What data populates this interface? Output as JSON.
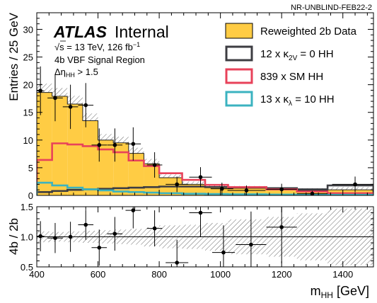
{
  "top_label": "NR-UNBLIND-FEB22-2",
  "atlas": {
    "brand": "ATLAS",
    "status": "Internal"
  },
  "info": {
    "energy": {
      "sqrt": "√s",
      "rest": " = 13 TeV, 126 fb",
      "sup": "−1"
    },
    "region": "4b VBF Signal Region",
    "cut": {
      "base": "Δη",
      "sub": "HH",
      "rest": " > 1.5"
    }
  },
  "chart_data": [
    {
      "type": "line",
      "panel": "main",
      "ylabel": "Entries / 25 GeV",
      "ylim": [
        0,
        33
      ],
      "xlim": [
        400,
        1500
      ],
      "yticks": [
        0,
        5,
        10,
        15,
        20,
        25,
        30
      ],
      "bin_edges": [
        400,
        450,
        500,
        550,
        600,
        650,
        700,
        750,
        800,
        875,
        950,
        1025,
        1150,
        1250,
        1350,
        1500
      ],
      "series": [
        {
          "name": "Reweighted 2b Data",
          "style": "filled-histogram",
          "color": "#ffcc44",
          "values": [
            18.6,
            17.9,
            16.5,
            13.5,
            10.0,
            9.5,
            7.6,
            5.7,
            3.2,
            2.0,
            1.4,
            1.3,
            1.0,
            0.9,
            1.0
          ],
          "uncertainty": [
            1.6,
            1.5,
            1.5,
            1.3,
            1.1,
            1.1,
            1.0,
            0.9,
            0.6,
            0.5,
            0.4,
            0.4,
            0.4,
            0.4,
            0.5
          ]
        },
        {
          "name": "12 x κ2V = 0 HH",
          "legend": {
            "prefix": "12 x κ",
            "sub": "2V",
            "suffix": " = 0 HH"
          },
          "style": "step",
          "color": "#3d3d42",
          "values": [
            0.6,
            0.8,
            1.0,
            1.1,
            1.2,
            1.3,
            1.4,
            1.5,
            1.6,
            1.6,
            1.5,
            1.5,
            1.3,
            1.1,
            1.8
          ]
        },
        {
          "name": "839 x SM HH",
          "legend": {
            "prefix": "839 x SM HH",
            "sub": "",
            "suffix": ""
          },
          "style": "step",
          "color": "#e8425a",
          "values": [
            6.4,
            9.4,
            9.2,
            8.9,
            8.3,
            7.8,
            6.3,
            5.3,
            4.0,
            2.8,
            1.9,
            1.5,
            1.1,
            0.7,
            0.4
          ]
        },
        {
          "name": "13 x κλ = 10 HH",
          "legend": {
            "prefix": "13 x κ",
            "sub": "λ",
            "suffix": " = 10 HH"
          },
          "style": "step",
          "color": "#3bb3c0",
          "values": [
            2.3,
            1.8,
            1.4,
            1.1,
            0.9,
            0.7,
            0.6,
            0.5,
            0.4,
            0.3,
            0.25,
            0.2,
            0.15,
            0.1,
            0.1
          ]
        }
      ],
      "points": {
        "name": "4b data",
        "x": [
          412,
          460,
          510,
          560,
          604,
          655,
          715,
          785,
          858,
          935,
          1005,
          1085,
          1200,
          1300,
          1440
        ],
        "xerr": [
          12,
          25,
          25,
          25,
          25,
          25,
          25,
          25,
          37,
          37,
          37,
          62,
          50,
          50,
          75
        ],
        "y": [
          18.9,
          17.6,
          16.0,
          16.3,
          9.1,
          9.1,
          9.3,
          5.5,
          2.0,
          3.3,
          1.2,
          0.9,
          1.1,
          0.3,
          2.0
        ],
        "yerr": [
          4.4,
          4.2,
          4.0,
          4.0,
          3.0,
          3.0,
          3.0,
          2.3,
          1.4,
          1.8,
          1.1,
          0.9,
          1.0,
          0.5,
          1.4
        ]
      }
    },
    {
      "type": "scatter",
      "panel": "ratio",
      "xlabel": {
        "base": "m",
        "sub": "HH",
        "rest": " [GeV]"
      },
      "ylabel": "4b / 2b",
      "ylim": [
        0.5,
        1.5
      ],
      "xlim": [
        400,
        1500
      ],
      "yticks": [
        0.5,
        1.0,
        1.5
      ],
      "xticks": [
        400,
        600,
        800,
        1000,
        1200,
        1400
      ],
      "reference": 1.0,
      "band": [
        0.09,
        0.08,
        0.09,
        0.1,
        0.11,
        0.12,
        0.13,
        0.16,
        0.19,
        0.2,
        0.23,
        0.29,
        0.33,
        0.39,
        0.47
      ],
      "points": {
        "x": [
          412,
          460,
          510,
          560,
          604,
          655,
          715,
          785,
          858,
          935,
          1010,
          1100,
          1200
        ],
        "xerr": [
          12,
          25,
          25,
          25,
          25,
          25,
          25,
          25,
          37,
          37,
          37,
          50,
          50
        ],
        "y": [
          1.01,
          0.98,
          1.0,
          1.2,
          0.82,
          1.05,
          1.44,
          1.14,
          0.57,
          1.4,
          0.74,
          0.87,
          1.16
        ],
        "yerr": [
          0.25,
          0.25,
          0.25,
          0.25,
          0.3,
          0.28,
          0.3,
          0.3,
          0.38,
          0.4,
          0.45,
          0.55,
          0.6
        ]
      }
    }
  ]
}
